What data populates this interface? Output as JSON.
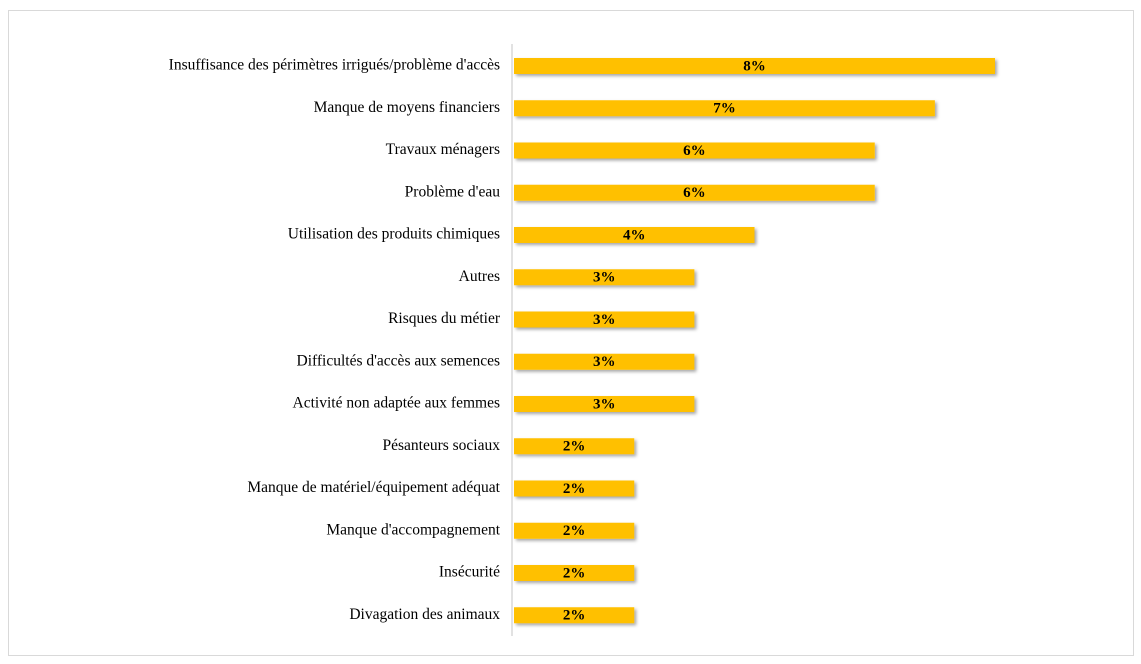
{
  "chart_data": {
    "type": "bar",
    "orientation": "horizontal",
    "color": "#ffc000",
    "categories": [
      "Insuffisance des périmètres irrigués/problème d'accès",
      "Manque de moyens financiers",
      "Travaux ménagers",
      "Problème d'eau",
      "Utilisation des produits chimiques",
      "Autres",
      "Risques du métier",
      "Difficultés d'accès aux semences",
      "Activité non adaptée aux femmes",
      "Pésanteurs sociaux",
      "Manque de matériel/équipement adéquat",
      "Manque d'accompagnement",
      "Insécurité",
      "Divagation des animaux"
    ],
    "values": [
      8,
      7,
      6,
      6,
      4,
      3,
      3,
      3,
      3,
      2,
      2,
      2,
      2,
      2
    ],
    "value_labels": [
      "8%",
      "7%",
      "6%",
      "6%",
      "4%",
      "3%",
      "3%",
      "3%",
      "3%",
      "2%",
      "2%",
      "2%",
      "2%",
      "2%"
    ]
  }
}
